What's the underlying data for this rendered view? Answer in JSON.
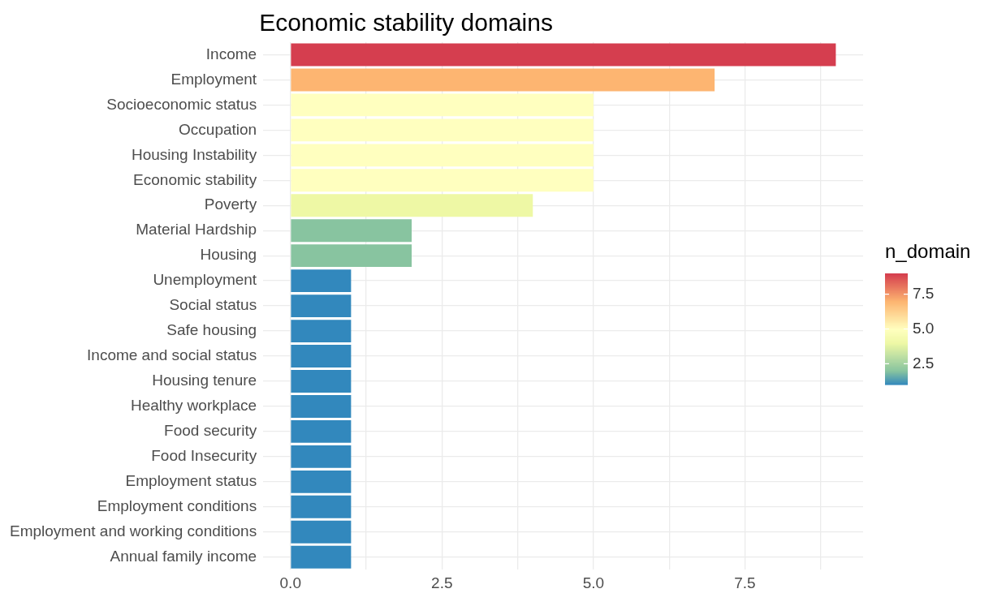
{
  "chart_data": {
    "type": "bar",
    "orientation": "horizontal",
    "title": "Economic stability domains",
    "clabel": "n_domain",
    "categories": [
      "Income",
      "Employment",
      "Socioeconomic status",
      "Occupation",
      "Housing Instability",
      "Economic stability",
      "Poverty",
      "Material Hardship",
      "Housing",
      "Unemployment",
      "Social status",
      "Safe housing",
      "Income and social status",
      "Housing tenure",
      "Healthy workplace",
      "Food security",
      "Food Insecurity",
      "Employment status",
      "Employment conditions",
      "Employment and working conditions",
      "Annual family income"
    ],
    "values": [
      9,
      7,
      5,
      5,
      5,
      5,
      4,
      2,
      2,
      1,
      1,
      1,
      1,
      1,
      1,
      1,
      1,
      1,
      1,
      1,
      1
    ],
    "colors": [
      "#d53e4f",
      "#fdb571",
      "#ffffbf",
      "#ffffbf",
      "#ffffbf",
      "#ffffbf",
      "#eef8a5",
      "#88c4a0",
      "#88c4a0",
      "#3288bd",
      "#3288bd",
      "#3288bd",
      "#3288bd",
      "#3288bd",
      "#3288bd",
      "#3288bd",
      "#3288bd",
      "#3288bd",
      "#3288bd",
      "#3288bd",
      "#3288bd"
    ],
    "xlim": [
      -0.45,
      9.45
    ],
    "xticks": [
      {
        "value": 0,
        "label": "0.0"
      },
      {
        "value": 1.25,
        "label": null
      },
      {
        "value": 2.5,
        "label": "2.5"
      },
      {
        "value": 3.75,
        "label": null
      },
      {
        "value": 5,
        "label": "5.0"
      },
      {
        "value": 6.25,
        "label": null
      },
      {
        "value": 7.5,
        "label": "7.5"
      },
      {
        "value": 8.75,
        "label": null
      }
    ],
    "clim": [
      1,
      9
    ],
    "cticks": [
      {
        "value": 2.5,
        "label": "2.5"
      },
      {
        "value": 5,
        "label": "5.0"
      },
      {
        "value": 7.5,
        "label": "7.5"
      }
    ],
    "grid": true,
    "legend": false
  }
}
